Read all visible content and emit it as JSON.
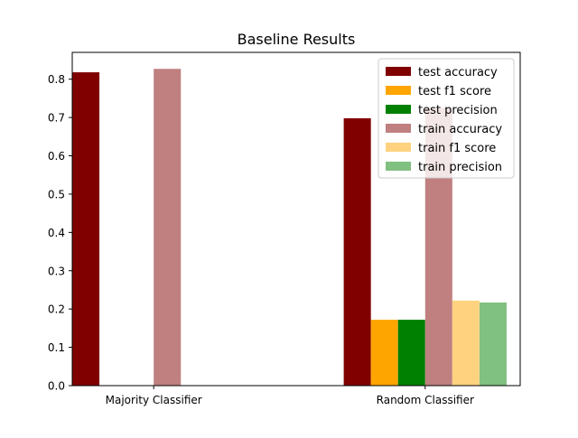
{
  "chart_data": {
    "type": "bar",
    "title": "Baseline Results",
    "xlabel": "",
    "ylabel": "",
    "ylim": [
      0,
      0.87
    ],
    "yticks": [
      0.0,
      0.1,
      0.2,
      0.3,
      0.4,
      0.5,
      0.6,
      0.7,
      0.8
    ],
    "categories": [
      "Majority Classifier",
      "Random Classifier"
    ],
    "legend_position": "top-right",
    "grid": false,
    "series": [
      {
        "name": "test accuracy",
        "color": "#800000",
        "values": [
          0.818,
          0.698
        ]
      },
      {
        "name": "test f1 score",
        "color": "#ffa500",
        "values": [
          0.0,
          0.172
        ]
      },
      {
        "name": "test precision",
        "color": "#008000",
        "values": [
          0.0,
          0.172
        ]
      },
      {
        "name": "train accuracy",
        "color": "#c08080",
        "values": [
          0.827,
          0.725
        ]
      },
      {
        "name": "train f1 score",
        "color": "#ffd280",
        "values": [
          0.0,
          0.222
        ]
      },
      {
        "name": "train precision",
        "color": "#80c080",
        "values": [
          0.0,
          0.217
        ]
      }
    ]
  }
}
